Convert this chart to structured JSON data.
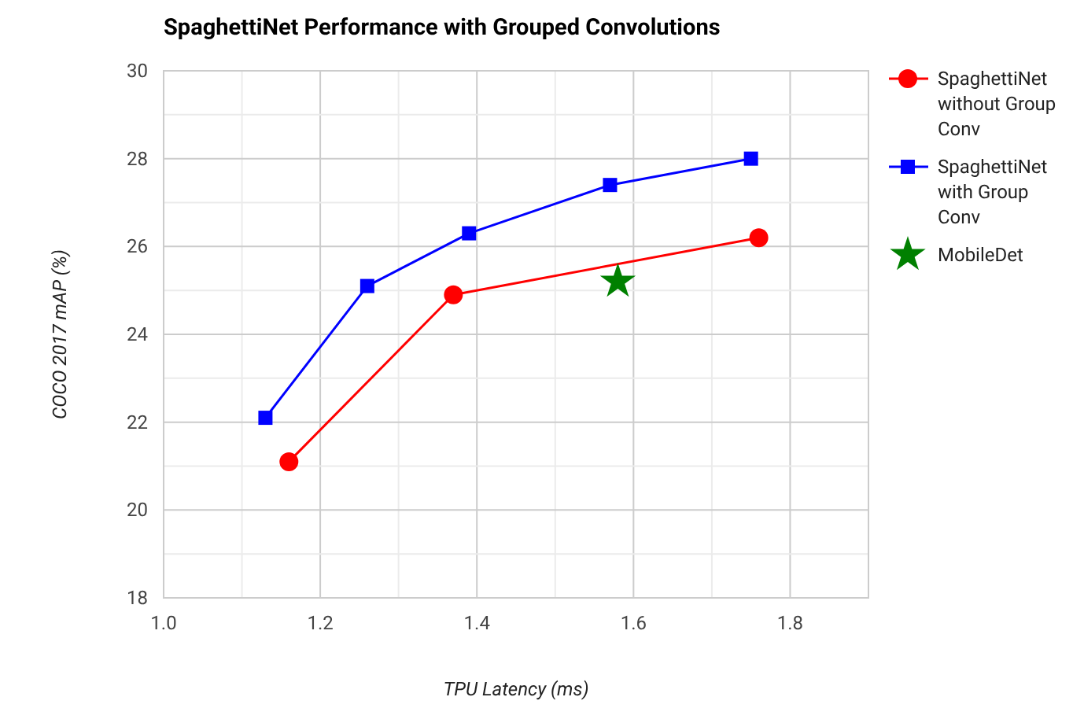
{
  "chart_data": {
    "type": "line",
    "title": "SpaghettiNet Performance with Grouped Convolutions",
    "xlabel": "TPU Latency (ms)",
    "ylabel": "COCO 2017 mAP (%)",
    "xlim": [
      1.0,
      1.9
    ],
    "ylim": [
      18,
      30
    ],
    "xticks": [
      {
        "value": 1.0,
        "label": "1.0"
      },
      {
        "value": 1.1,
        "label": null
      },
      {
        "value": 1.2,
        "label": "1.2"
      },
      {
        "value": 1.3,
        "label": null
      },
      {
        "value": 1.4,
        "label": "1.4"
      },
      {
        "value": 1.5,
        "label": null
      },
      {
        "value": 1.6,
        "label": "1.6"
      },
      {
        "value": 1.7,
        "label": null
      },
      {
        "value": 1.8,
        "label": "1.8"
      },
      {
        "value": 1.9,
        "label": null
      }
    ],
    "yticks": [
      18,
      {
        "value": 19,
        "label": null
      },
      20,
      {
        "value": 21,
        "label": null
      },
      22,
      {
        "value": 23,
        "label": null
      },
      24,
      {
        "value": 25,
        "label": null
      },
      26,
      {
        "value": 27,
        "label": null
      },
      28,
      {
        "value": 29,
        "label": null
      },
      30
    ],
    "grid": true,
    "legend": "right",
    "series": [
      {
        "name": "SpaghettiNet without Group Conv",
        "color": "#ff0000",
        "marker": "circle",
        "x": [
          1.16,
          1.37,
          1.76
        ],
        "values": [
          21.1,
          24.9,
          26.2
        ]
      },
      {
        "name": "SpaghettiNet with Group Conv",
        "color": "#0000ff",
        "marker": "square",
        "x": [
          1.13,
          1.26,
          1.39,
          1.57,
          1.75
        ],
        "values": [
          22.1,
          25.1,
          26.3,
          27.4,
          28.0
        ]
      },
      {
        "name": "MobileDet",
        "type": "scatter",
        "color": "#008000",
        "marker": "star",
        "x": [
          1.58
        ],
        "values": [
          25.2
        ]
      }
    ]
  }
}
